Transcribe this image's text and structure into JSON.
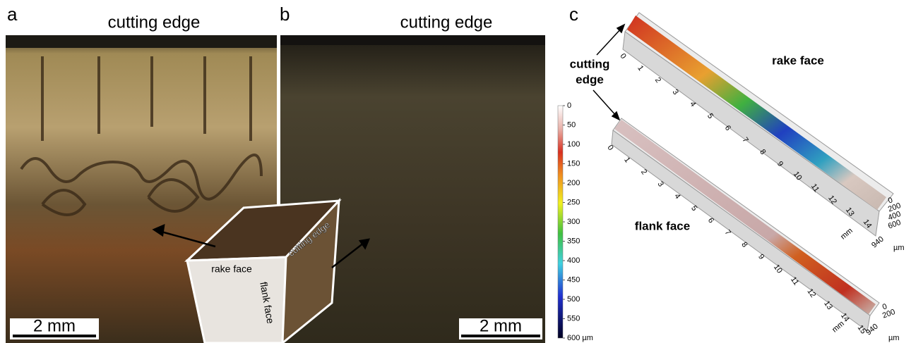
{
  "panels": [
    {
      "label": "a",
      "title": "cutting edge",
      "scale_bar": "2 mm"
    },
    {
      "label": "b",
      "title": "cutting edge",
      "scale_bar": "2 mm"
    },
    {
      "label": "c"
    }
  ],
  "inset": {
    "rake": "rake face",
    "edge": "cutting edge",
    "flank": "flank face"
  },
  "profile": {
    "edge_label": [
      "cutting",
      "edge"
    ],
    "rake_label": "rake face",
    "flank_label": "flank face",
    "colorbar": {
      "labels": [
        "0",
        "50",
        "100",
        "150",
        "200",
        "250",
        "300",
        "350",
        "400",
        "450",
        "500",
        "550",
        "600 µm"
      ]
    },
    "rake_axis": {
      "mm_ticks": [
        "0",
        "1",
        "2",
        "3",
        "4",
        "5",
        "6",
        "7",
        "8",
        "9",
        "10",
        "11",
        "12",
        "13",
        "14"
      ],
      "unit": "mm",
      "depth_ticks": [
        "0",
        "200",
        "400",
        "600"
      ],
      "width": "940",
      "depth_unit": "µm"
    },
    "flank_axis": {
      "mm_ticks": [
        "0",
        "1",
        "2",
        "3",
        "4",
        "5",
        "6",
        "7",
        "8",
        "9",
        "10",
        "11",
        "12",
        "13",
        "14",
        "15"
      ],
      "unit": "mm",
      "depth_ticks": [
        "0",
        "200"
      ],
      "width": "940",
      "depth_unit": "µm"
    }
  }
}
